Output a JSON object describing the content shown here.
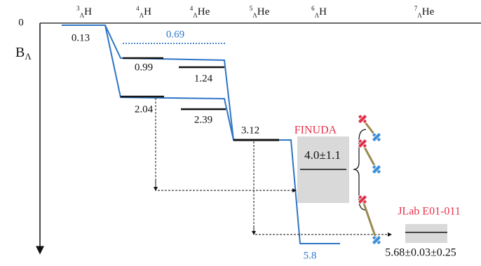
{
  "axis": {
    "zero": "0",
    "label": {
      "symbol": "B",
      "sub": "Λ"
    }
  },
  "columns": [
    {
      "mass": "3",
      "lambda": "Λ",
      "element": "H"
    },
    {
      "mass": "4",
      "lambda": "Λ",
      "element": "H"
    },
    {
      "mass": "4",
      "lambda": "Λ",
      "element": "He"
    },
    {
      "mass": "5",
      "lambda": "Λ",
      "element": "He"
    },
    {
      "mass": "6",
      "lambda": "Λ",
      "element": "H"
    },
    {
      "mass": "7",
      "lambda": "Λ",
      "element": "He"
    }
  ],
  "levels": [
    "0.13",
    "0.69",
    "0.99",
    "1.24",
    "2.04",
    "2.39",
    "3.12",
    "4.0±1.1",
    "5.8",
    "5.68±0.03±0.25"
  ],
  "experiments": [
    "FINUDA",
    "JLab E01-011"
  ]
}
